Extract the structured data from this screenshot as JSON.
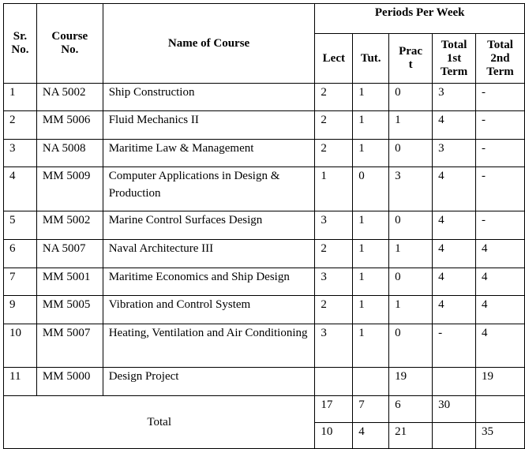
{
  "headers": {
    "sr": "Sr. No.",
    "course_no": "Course No.",
    "name": "Name of Course",
    "periods": "Periods Per Week",
    "lect": "Lect",
    "tut": "Tut.",
    "pract": "Prac t",
    "total1": "Total 1st Term",
    "total2": "Total 2nd Term"
  },
  "rows": [
    {
      "sr": "1",
      "code": "NA 5002",
      "name": "Ship Construction",
      "lect": "2",
      "tut": "1",
      "pract": "0",
      "t1": "3",
      "t2": "-"
    },
    {
      "sr": "2",
      "code": "MM 5006",
      "name": "Fluid Mechanics II",
      "lect": "2",
      "tut": "1",
      "pract": "1",
      "t1": "4",
      "t2": "-"
    },
    {
      "sr": "3",
      "code": "NA 5008",
      "name": "Maritime Law & Management",
      "lect": "2",
      "tut": "1",
      "pract": "0",
      "t1": "3",
      "t2": "-"
    },
    {
      "sr": "4",
      "code": "MM 5009",
      "name": "Computer Applications in Design & Production",
      "lect": "1",
      "tut": "0",
      "pract": "3",
      "t1": "4",
      "t2": "-"
    },
    {
      "sr": "5",
      "code": "MM 5002",
      "name": "Marine Control Surfaces Design",
      "lect": "3",
      "tut": "1",
      "pract": "0",
      "t1": "4",
      "t2": "-"
    },
    {
      "sr": "6",
      "code": "NA 5007",
      "name": "Naval  Architecture III",
      "lect": "2",
      "tut": "1",
      "pract": "1",
      "t1": "4",
      "t2": "4"
    },
    {
      "sr": "7",
      "code": "MM 5001",
      "name": "Maritime Economics and Ship Design",
      "lect": "3",
      "tut": "1",
      "pract": "0",
      "t1": "4",
      "t2": "4"
    },
    {
      "sr": "9",
      "code": "MM 5005",
      "name": "Vibration and Control System",
      "lect": "2",
      "tut": "1",
      "pract": "1",
      "t1": "4",
      "t2": "4"
    },
    {
      "sr": "10",
      "code": "MM 5007",
      "name": "Heating, Ventilation and Air Conditioning",
      "lect": "3",
      "tut": "1",
      "pract": "0",
      "t1": "-",
      "t2": "4"
    },
    {
      "sr": "11",
      "code": "MM 5000",
      "name": "Design Project",
      "lect": "",
      "tut": "",
      "pract": "19",
      "t1": "",
      "t2": "19"
    }
  ],
  "total": {
    "label": "Total",
    "row1": {
      "lect": "17",
      "tut": "7",
      "pract": "6",
      "t1": "30",
      "t2": ""
    },
    "row2": {
      "lect": "10",
      "tut": "4",
      "pract": "21",
      "t1": "",
      "t2": "35"
    }
  }
}
